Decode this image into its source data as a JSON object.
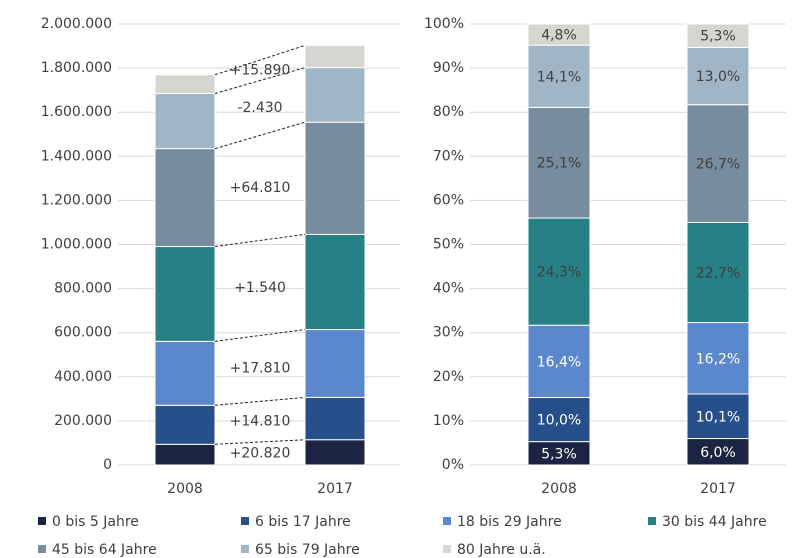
{
  "chart_data": [
    {
      "type": "stacked-bar",
      "categories": [
        "2008",
        "2017"
      ],
      "series": [
        {
          "name": "0 bis 5 Jahre",
          "color": "#1b2443",
          "values": [
            93800,
            114620
          ]
        },
        {
          "name": "6 bis 17 Jahre",
          "color": "#274f8a",
          "values": [
            177000,
            191810
          ]
        },
        {
          "name": "18 bis 29 Jahre",
          "color": "#5b87cc",
          "values": [
            290000,
            307810
          ]
        },
        {
          "name": "30 bis 44 Jahre",
          "color": "#268086",
          "values": [
            430000,
            431540
          ]
        },
        {
          "name": "45 bis 64 Jahre",
          "color": "#778c9e",
          "values": [
            444000,
            508810
          ]
        },
        {
          "name": "65 bis 79 Jahre",
          "color": "#a0b6c6",
          "values": [
            250000,
            247570
          ]
        },
        {
          "name": "80 Jahre u.ä.",
          "color": "#d6d6d0",
          "values": [
            85000,
            100890
          ]
        }
      ],
      "annotations": [
        "+20.820",
        "+14.810",
        "+17.810",
        "+1.540",
        "+64.810",
        "-2.430",
        "+15.890"
      ],
      "ylim": [
        0,
        2000000
      ],
      "yticks": [
        0,
        {
          "value": 200000,
          "label": "200.000"
        },
        {
          "value": 400000,
          "label": "400.000"
        },
        {
          "value": 600000,
          "label": "600.000"
        },
        {
          "value": 800000,
          "label": "800.000"
        },
        {
          "value": 1000000,
          "label": "1.000.000"
        },
        {
          "value": 1200000,
          "label": "1.200.000"
        },
        {
          "value": 1400000,
          "label": "1.400.000"
        },
        {
          "value": 1600000,
          "label": "1.600.000"
        },
        {
          "value": 1800000,
          "label": "1.800.000"
        },
        {
          "value": 2000000,
          "label": "2.000.000"
        }
      ],
      "grid": true
    },
    {
      "type": "stacked-bar-percent",
      "categories": [
        "2008",
        "2017"
      ],
      "series": [
        {
          "values": [
            5.3,
            6.0
          ],
          "value_labels": [
            "5,3%",
            "6,0%"
          ]
        },
        {
          "values": [
            10.0,
            10.1
          ],
          "value_labels": [
            "10,0%",
            "10,1%"
          ]
        },
        {
          "values": [
            16.4,
            16.2
          ],
          "value_labels": [
            "16,4%",
            "16,2%"
          ]
        },
        {
          "values": [
            24.3,
            22.7
          ],
          "value_labels": [
            "24,3%",
            "22,7%"
          ]
        },
        {
          "values": [
            25.1,
            26.7
          ],
          "value_labels": [
            "25,1%",
            "26,7%"
          ]
        },
        {
          "values": [
            14.1,
            13.0
          ],
          "value_labels": [
            "14,1%",
            "13,0%"
          ]
        },
        {
          "values": [
            4.8,
            5.3
          ],
          "value_labels": [
            "4,8%",
            "5,3%"
          ]
        }
      ],
      "ylim": [
        0,
        100
      ],
      "yticks": [
        {
          "value": 0,
          "label": "0%"
        },
        {
          "value": 10,
          "label": "10%"
        },
        {
          "value": 20,
          "label": "20%"
        },
        {
          "value": 30,
          "label": "30%"
        },
        {
          "value": 40,
          "label": "40%"
        },
        {
          "value": 50,
          "label": "50%"
        },
        {
          "value": 60,
          "label": "60%"
        },
        {
          "value": 70,
          "label": "70%"
        },
        {
          "value": 80,
          "label": "80%"
        },
        {
          "value": 90,
          "label": "90%"
        },
        {
          "value": 100,
          "label": "100%"
        }
      ],
      "grid": true
    }
  ]
}
